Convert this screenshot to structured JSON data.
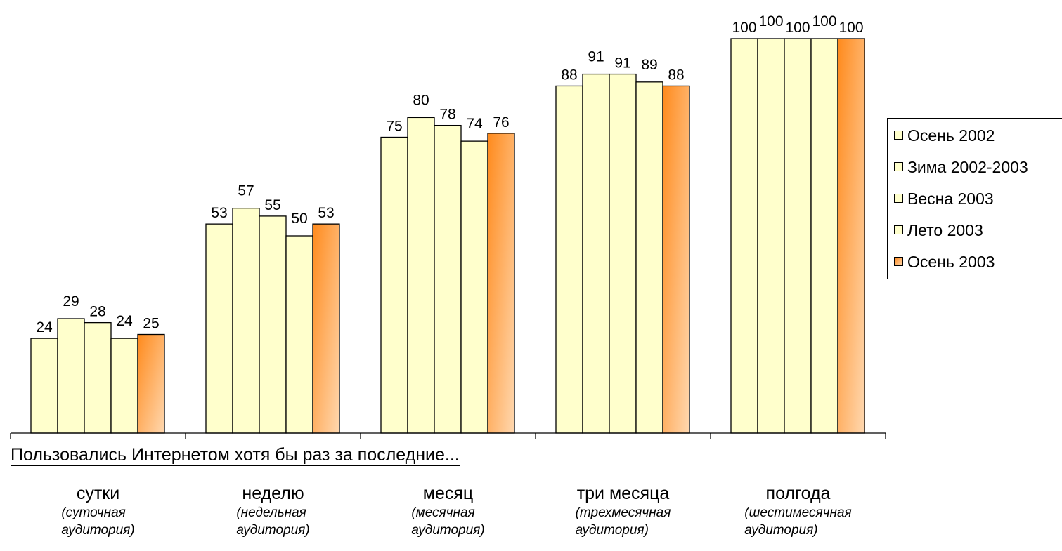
{
  "chart_data": {
    "type": "bar",
    "xlabel": "Пользовались Интернетом хотя бы раз за последние...",
    "ylabel": "",
    "categories": [
      "сутки",
      "неделю",
      "месяц",
      "три месяца",
      "полгода"
    ],
    "category_sub": [
      [
        "(суточная",
        "аудитория)"
      ],
      [
        "(недельная",
        "аудитория)"
      ],
      [
        "(месячная",
        "аудитория)"
      ],
      [
        "(трехмесячная",
        "аудитория)"
      ],
      [
        "(шестимесячная",
        "аудитория)"
      ]
    ],
    "series": [
      {
        "name": "Осень 2002",
        "values": [
          24,
          53,
          75,
          88,
          100
        ]
      },
      {
        "name": "Зима 2002-2003",
        "values": [
          29,
          57,
          80,
          91,
          100
        ]
      },
      {
        "name": "Весна 2003",
        "values": [
          28,
          55,
          78,
          91,
          100
        ]
      },
      {
        "name": "Лето 2003",
        "values": [
          24,
          50,
          74,
          89,
          100
        ]
      },
      {
        "name": "Осень 2003",
        "values": [
          25,
          53,
          76,
          88,
          100
        ]
      }
    ],
    "ylim": [
      0,
      100
    ],
    "grid": false,
    "legend_position": "right",
    "colors": {
      "bar_fill": "#ffffcc",
      "highlight_from": "#ff8a1c",
      "highlight_to": "#ffd8b0",
      "outline": "#000000"
    }
  }
}
